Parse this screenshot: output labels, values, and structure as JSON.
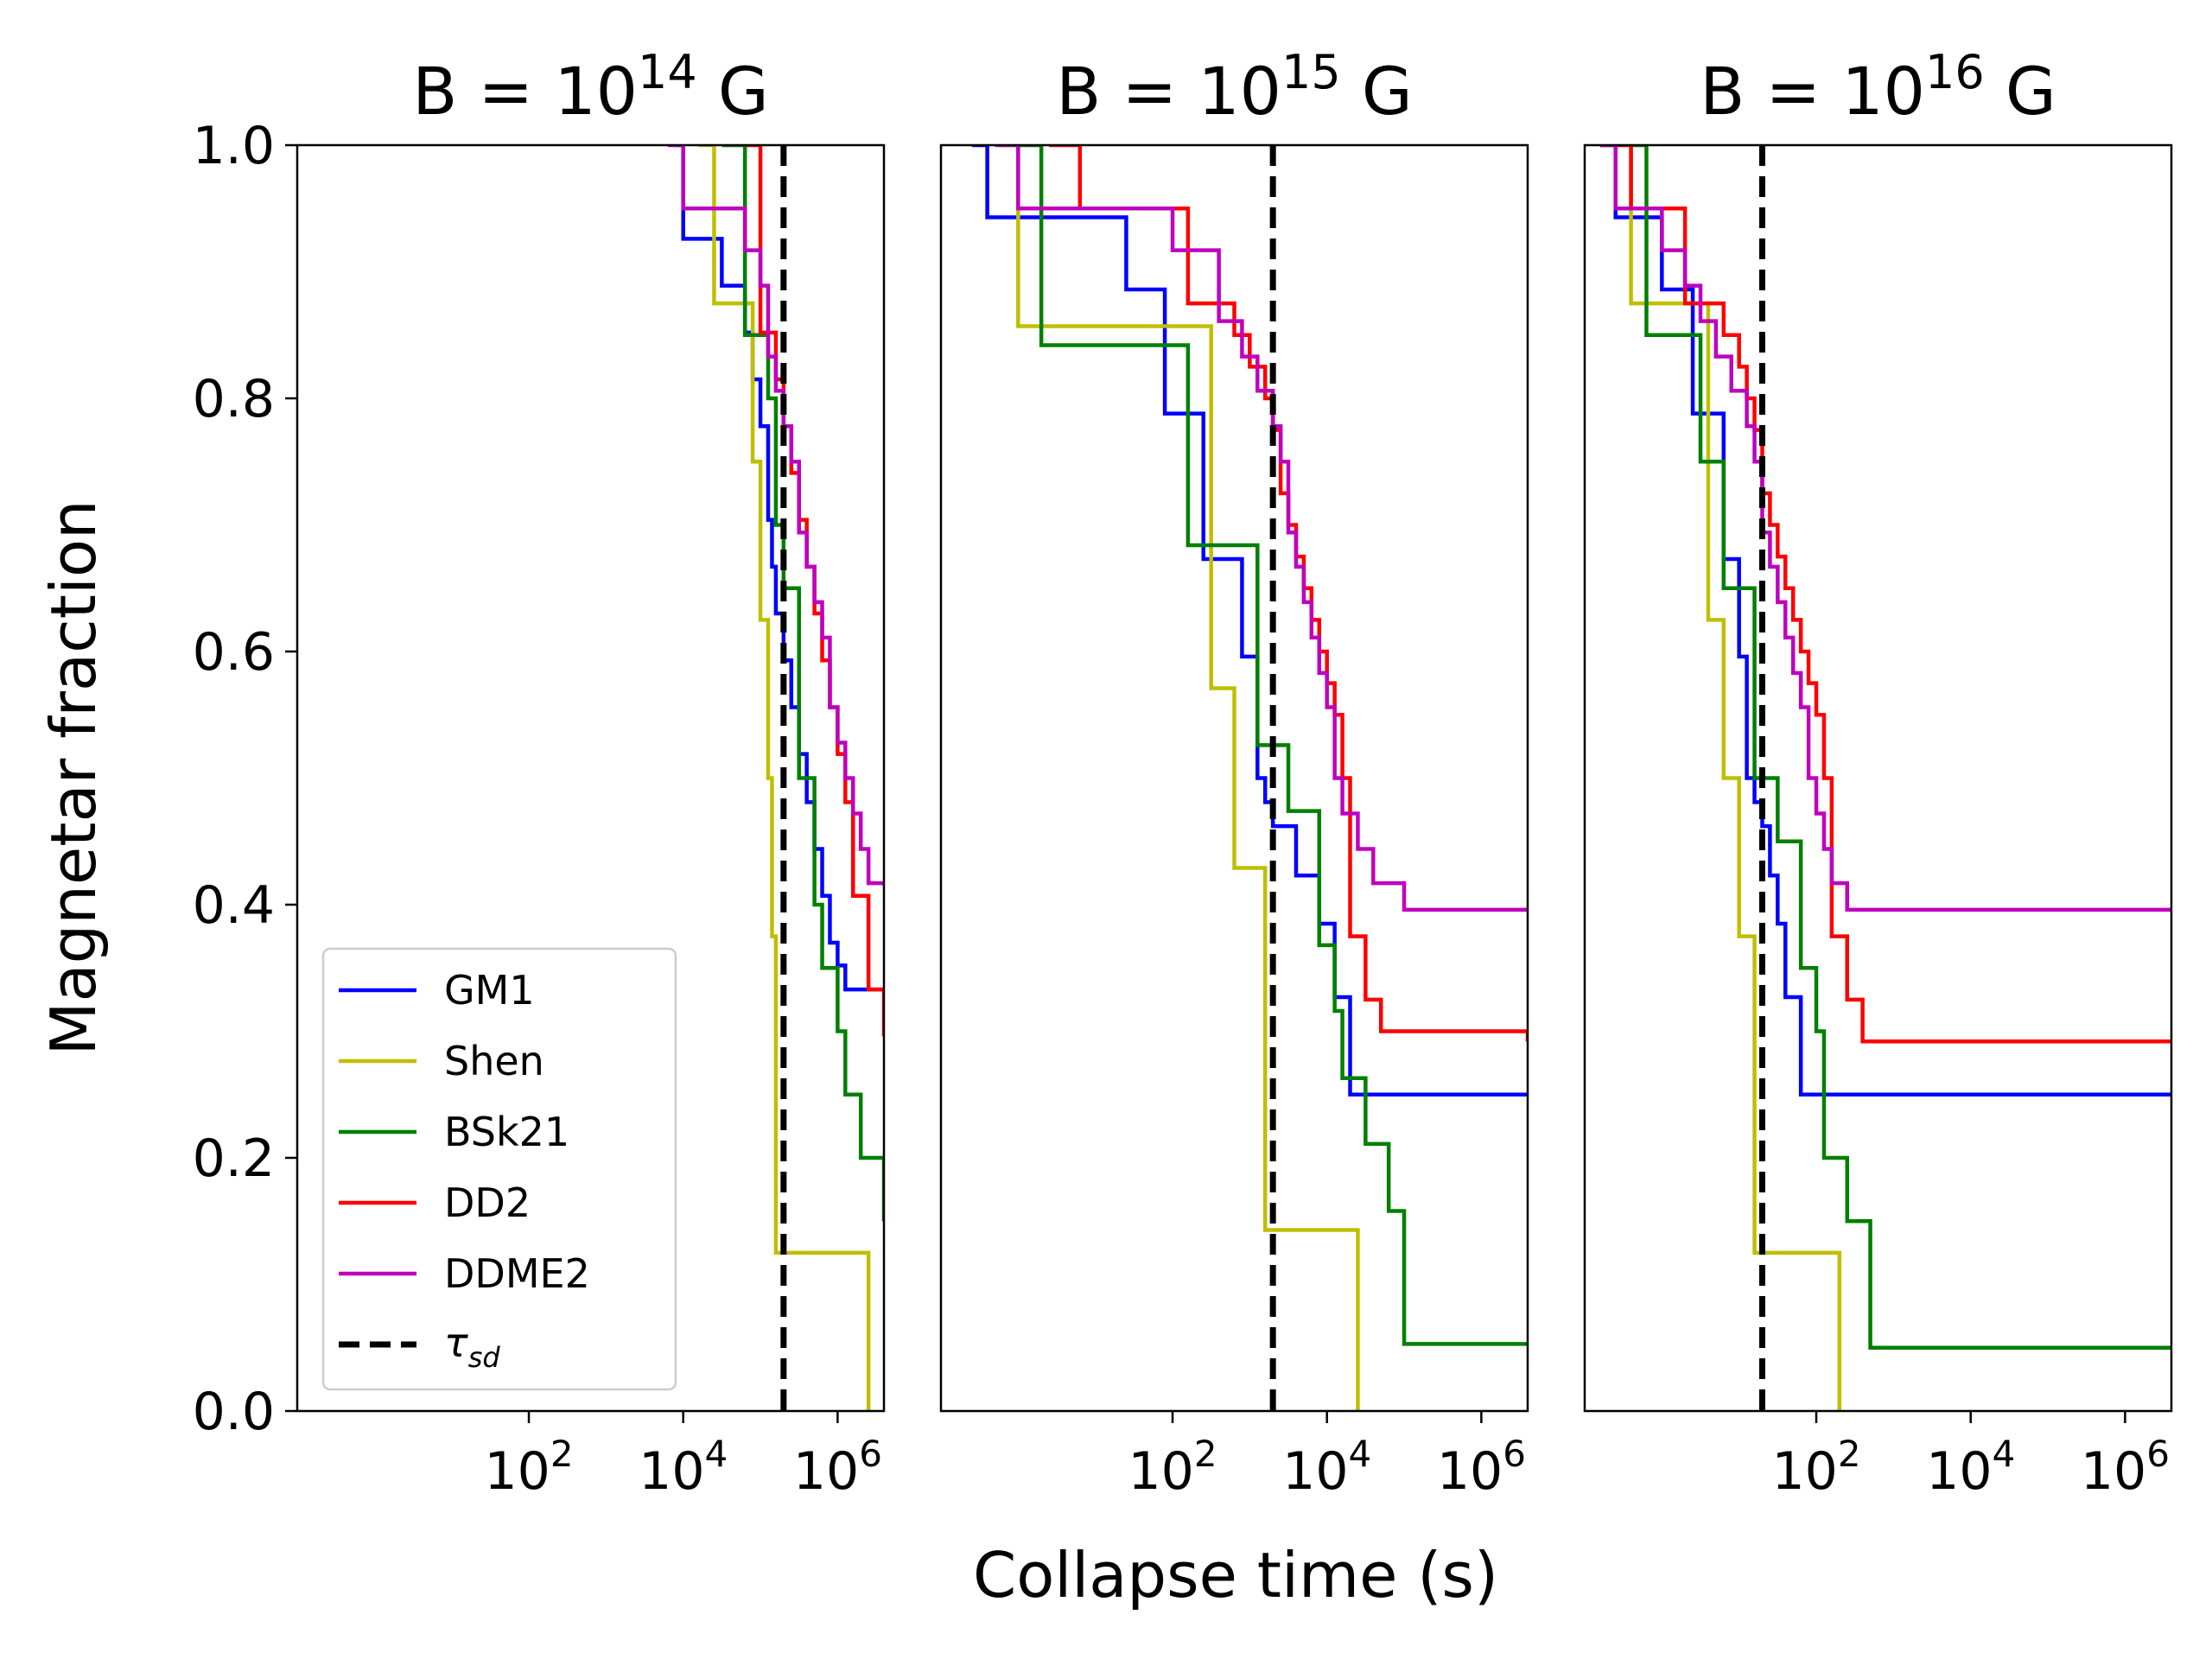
{
  "figure": {
    "ylabel": "Magnetar fraction",
    "xlabel": "Collapse time (s)"
  },
  "legend": {
    "location": "lower-left of first panel",
    "tau_base": "τ",
    "tau_sub": "sd"
  },
  "series_styles": [
    {
      "name": "GM1",
      "color": "#0000ff",
      "dash": "solid"
    },
    {
      "name": "Shen",
      "color": "#bfbf00",
      "dash": "solid"
    },
    {
      "name": "BSk21",
      "color": "#008000",
      "dash": "solid"
    },
    {
      "name": "DD2",
      "color": "#ff0000",
      "dash": "solid"
    },
    {
      "name": "DDME2",
      "color": "#bf00bf",
      "dash": "solid"
    }
  ],
  "tau_color": "#000000",
  "chart_data": [
    {
      "type": "line",
      "title_base": "B = 10",
      "title_exp": "14",
      "title_unit": " G",
      "xscale": "log",
      "xlim_log10": [
        -1,
        6.6
      ],
      "ylim": [
        0,
        1
      ],
      "xticks_log10": [
        2,
        4,
        6
      ],
      "yticks": [
        "0.0",
        "0.2",
        "0.4",
        "0.6",
        "0.8",
        "1.0"
      ],
      "show_yticks": true,
      "tau_sd_log10": 5.3,
      "series": [
        {
          "name": "GM1",
          "x_log10": [
            3.9,
            4.0,
            4.5,
            4.8,
            4.9,
            5.0,
            5.1,
            5.15,
            5.2,
            5.3,
            5.4,
            5.5,
            5.6,
            5.7,
            5.8,
            5.9,
            6.0,
            6.1,
            6.2,
            6.3,
            6.6
          ],
          "y": [
            1.0,
            0.926,
            0.889,
            0.852,
            0.815,
            0.778,
            0.704,
            0.667,
            0.63,
            0.593,
            0.556,
            0.519,
            0.481,
            0.444,
            0.407,
            0.37,
            0.352,
            0.333,
            0.333,
            0.333,
            0.333
          ]
        },
        {
          "name": "Shen",
          "x_log10": [
            4.2,
            4.4,
            4.6,
            4.8,
            4.9,
            5.0,
            5.1,
            5.15,
            5.2,
            5.25,
            6.4
          ],
          "y": [
            1.0,
            0.875,
            0.875,
            0.875,
            0.75,
            0.625,
            0.5,
            0.375,
            0.125,
            0.125,
            0.0
          ]
        },
        {
          "name": "BSk21",
          "x_log10": [
            4.5,
            4.8,
            5.0,
            5.1,
            5.2,
            5.3,
            5.5,
            5.7,
            5.8,
            6.0,
            6.1,
            6.3,
            6.6
          ],
          "y": [
            1.0,
            0.85,
            0.85,
            0.8,
            0.7,
            0.65,
            0.5,
            0.4,
            0.35,
            0.3,
            0.25,
            0.2,
            0.15
          ]
        },
        {
          "name": "DD2",
          "x_log10": [
            4.8,
            5.0,
            5.1,
            5.2,
            5.3,
            5.4,
            5.5,
            5.6,
            5.7,
            5.8,
            5.9,
            6.0,
            6.1,
            6.2,
            6.4,
            6.6
          ],
          "y": [
            1.0,
            0.852,
            0.852,
            0.815,
            0.778,
            0.741,
            0.704,
            0.667,
            0.63,
            0.593,
            0.556,
            0.519,
            0.481,
            0.407,
            0.333,
            0.296
          ]
        },
        {
          "name": "DDME2",
          "x_log10": [
            3.8,
            4.0,
            4.3,
            4.6,
            4.8,
            5.0,
            5.1,
            5.2,
            5.3,
            5.4,
            5.5,
            5.6,
            5.7,
            5.8,
            5.9,
            6.0,
            6.1,
            6.2,
            6.3,
            6.4,
            6.6
          ],
          "y": [
            1.0,
            0.95,
            0.95,
            0.95,
            0.917,
            0.889,
            0.833,
            0.806,
            0.778,
            0.75,
            0.694,
            0.667,
            0.639,
            0.611,
            0.556,
            0.528,
            0.5,
            0.472,
            0.444,
            0.417,
            0.417
          ]
        }
      ]
    },
    {
      "type": "line",
      "title_base": "B = 10",
      "title_exp": "15",
      "title_unit": " G",
      "xscale": "log",
      "xlim_log10": [
        -1,
        6.6
      ],
      "ylim": [
        0,
        1
      ],
      "xticks_log10": [
        2,
        4,
        6
      ],
      "yticks": [],
      "show_yticks": false,
      "tau_sd_log10": 3.3,
      "series": [
        {
          "name": "GM1",
          "x_log10": [
            -0.6,
            -0.4,
            0.6,
            1.4,
            1.9,
            2.1,
            2.4,
            2.7,
            2.9,
            3.1,
            3.2,
            3.3,
            3.6,
            3.9,
            4.1,
            4.3,
            6.6
          ],
          "y": [
            1.0,
            0.943,
            0.943,
            0.886,
            0.788,
            0.788,
            0.673,
            0.673,
            0.596,
            0.5,
            0.481,
            0.462,
            0.423,
            0.385,
            0.327,
            0.25,
            0.25
          ]
        },
        {
          "name": "Shen",
          "x_log10": [
            -0.2,
            0.0,
            0.5,
            1.0,
            2.0,
            2.5,
            2.8,
            3.1,
            3.2,
            4.4
          ],
          "y": [
            1.0,
            0.857,
            0.857,
            0.857,
            0.857,
            0.571,
            0.429,
            0.429,
            0.143,
            0.0
          ]
        },
        {
          "name": "BSk21",
          "x_log10": [
            0.0,
            0.3,
            1.0,
            1.6,
            2.2,
            2.5,
            3.1,
            3.5,
            3.9,
            4.1,
            4.2,
            4.5,
            4.8,
            5.0,
            6.6
          ],
          "y": [
            1.0,
            0.842,
            0.842,
            0.842,
            0.684,
            0.684,
            0.526,
            0.474,
            0.368,
            0.316,
            0.263,
            0.211,
            0.158,
            0.053,
            0.053
          ]
        },
        {
          "name": "DD2",
          "x_log10": [
            0.4,
            0.8,
            1.2,
            1.6,
            2.2,
            2.5,
            2.8,
            3.0,
            3.2,
            3.3,
            3.4,
            3.5,
            3.6,
            3.7,
            3.8,
            3.9,
            4.0,
            4.1,
            4.2,
            4.3,
            4.5,
            4.7,
            6.6
          ],
          "y": [
            1.0,
            0.95,
            0.95,
            0.95,
            0.875,
            0.875,
            0.85,
            0.825,
            0.8,
            0.775,
            0.725,
            0.7,
            0.675,
            0.65,
            0.625,
            0.6,
            0.575,
            0.55,
            0.5,
            0.375,
            0.325,
            0.3,
            0.292
          ]
        },
        {
          "name": "DDME2",
          "x_log10": [
            -0.3,
            0.0,
            0.5,
            1.0,
            1.5,
            2.0,
            2.3,
            2.6,
            2.9,
            3.1,
            3.3,
            3.4,
            3.5,
            3.6,
            3.7,
            3.8,
            3.9,
            4.0,
            4.1,
            4.2,
            4.4,
            4.6,
            4.8,
            5.0,
            6.6
          ],
          "y": [
            1.0,
            0.95,
            0.95,
            0.95,
            0.95,
            0.917,
            0.917,
            0.861,
            0.833,
            0.806,
            0.778,
            0.75,
            0.694,
            0.667,
            0.639,
            0.611,
            0.583,
            0.556,
            0.5,
            0.472,
            0.444,
            0.417,
            0.417,
            0.396,
            0.396
          ]
        }
      ]
    },
    {
      "type": "line",
      "title_base": "B = 10",
      "title_exp": "16",
      "title_unit": " G",
      "xscale": "log",
      "xlim_log10": [
        -1,
        6.6
      ],
      "ylim": [
        0,
        1
      ],
      "xticks_log10": [
        2,
        4,
        6
      ],
      "yticks": [],
      "show_yticks": false,
      "tau_sd_log10": 1.3,
      "series": [
        {
          "name": "GM1",
          "x_log10": [
            -0.8,
            -0.6,
            -0.2,
            0.0,
            0.4,
            0.6,
            0.8,
            0.9,
            1.0,
            1.1,
            1.2,
            1.3,
            1.4,
            1.5,
            1.6,
            1.8,
            2.0,
            2.2,
            6.6
          ],
          "y": [
            1.0,
            0.943,
            0.943,
            0.886,
            0.788,
            0.788,
            0.673,
            0.673,
            0.596,
            0.5,
            0.481,
            0.462,
            0.423,
            0.385,
            0.327,
            0.25,
            0.25,
            0.25,
            0.25
          ]
        },
        {
          "name": "Shen",
          "x_log10": [
            -0.5,
            -0.4,
            0.0,
            0.4,
            0.6,
            0.8,
            1.0,
            1.1,
            1.2,
            1.3,
            2.3
          ],
          "y": [
            1.0,
            0.875,
            0.875,
            0.875,
            0.625,
            0.5,
            0.375,
            0.375,
            0.125,
            0.125,
            0.0
          ]
        },
        {
          "name": "BSk21",
          "x_log10": [
            -0.4,
            -0.2,
            0.2,
            0.5,
            0.8,
            1.0,
            1.2,
            1.5,
            1.8,
            2.0,
            2.1,
            2.2,
            2.4,
            2.7,
            6.6
          ],
          "y": [
            1.0,
            0.85,
            0.85,
            0.75,
            0.65,
            0.65,
            0.5,
            0.45,
            0.35,
            0.3,
            0.2,
            0.2,
            0.15,
            0.05,
            0.05
          ]
        },
        {
          "name": "DD2",
          "x_log10": [
            -0.6,
            -0.4,
            -0.2,
            0.0,
            0.3,
            0.6,
            0.8,
            1.0,
            1.1,
            1.2,
            1.3,
            1.4,
            1.5,
            1.6,
            1.7,
            1.8,
            1.9,
            2.0,
            2.1,
            2.2,
            2.4,
            2.6,
            6.6
          ],
          "y": [
            1.0,
            0.95,
            0.95,
            0.95,
            0.875,
            0.875,
            0.85,
            0.825,
            0.8,
            0.775,
            0.725,
            0.7,
            0.675,
            0.65,
            0.625,
            0.6,
            0.575,
            0.55,
            0.5,
            0.375,
            0.325,
            0.292,
            0.292
          ]
        },
        {
          "name": "DDME2",
          "x_log10": [
            -0.8,
            -0.6,
            -0.4,
            -0.2,
            0.0,
            0.3,
            0.5,
            0.7,
            0.9,
            1.1,
            1.2,
            1.3,
            1.4,
            1.5,
            1.6,
            1.7,
            1.8,
            1.9,
            2.0,
            2.1,
            2.2,
            2.4,
            2.6,
            6.6
          ],
          "y": [
            1.0,
            0.95,
            0.95,
            0.95,
            0.917,
            0.889,
            0.861,
            0.833,
            0.806,
            0.778,
            0.75,
            0.694,
            0.667,
            0.639,
            0.611,
            0.583,
            0.556,
            0.5,
            0.472,
            0.444,
            0.417,
            0.396,
            0.396,
            0.396
          ]
        }
      ]
    }
  ]
}
